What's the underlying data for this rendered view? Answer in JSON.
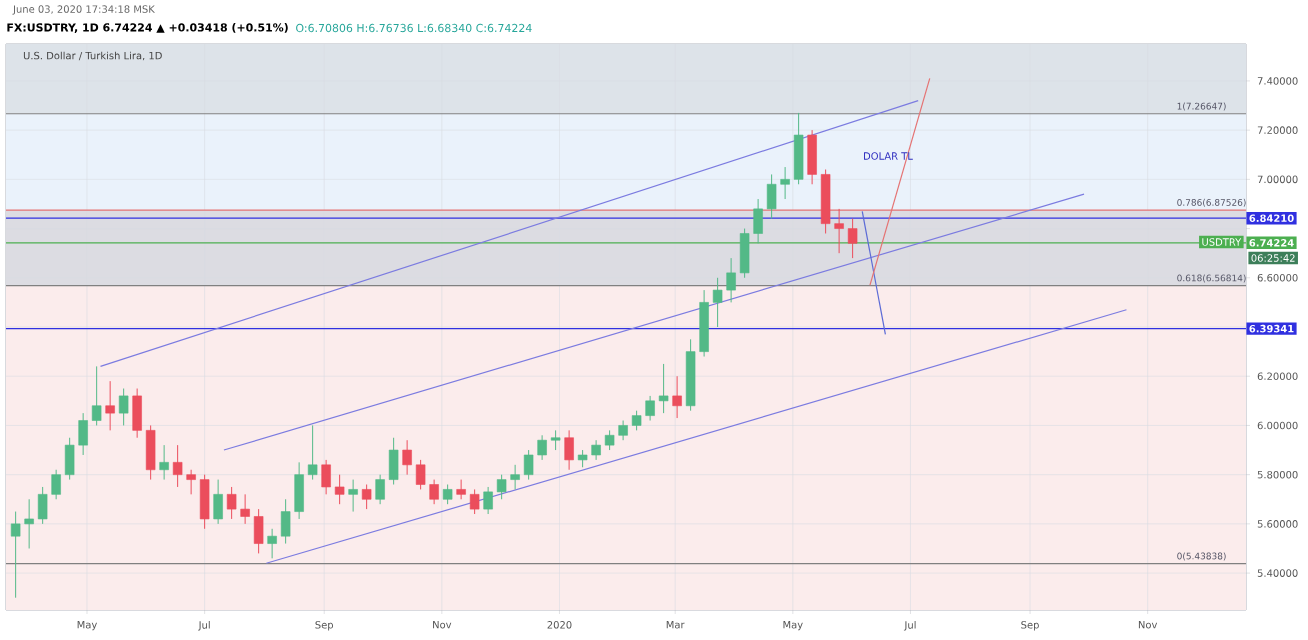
{
  "chart_data": {
    "type": "candlestick",
    "title": "**FX:USDTRY, 1D** 6.74224 ▲ +0.03418 (+0.51%)",
    "subtitle": "O:6.70806 H:6.76736 L:6.68340 C:6.74224",
    "annotations": [
      "June 03, 2020 17:34:18 MSK",
      "U.S. Dollar / Turkish Lira, 1D",
      "USDTRY",
      "06:25:42",
      {
        "text": "1(7.26647)",
        "x": "2020-11-15",
        "y": 7.26647
      },
      {
        "text": "0.786(6.87526)",
        "x": "2020-11-15",
        "y": 6.87526
      },
      {
        "text": "0.618(6.56814)",
        "x": "2020-11-15",
        "y": 6.56814
      },
      {
        "text": "0(5.43838)",
        "x": "2020-11-15",
        "y": 5.43838
      },
      "DOLAR TL"
    ],
    "x": [
      "2019-03-25",
      "2019-04-01",
      "2019-04-08",
      "2019-04-15",
      "2019-04-22",
      "2019-04-29",
      "2019-05-06",
      "2019-05-13",
      "2019-05-20",
      "2019-05-27",
      "2019-06-03",
      "2019-06-10",
      "2019-06-17",
      "2019-06-24",
      "2019-07-01",
      "2019-07-08",
      "2019-07-15",
      "2019-07-22",
      "2019-07-29",
      "2019-08-05",
      "2019-08-12",
      "2019-08-19",
      "2019-08-26",
      "2019-09-02",
      "2019-09-09",
      "2019-09-16",
      "2019-09-23",
      "2019-09-30",
      "2019-10-07",
      "2019-10-14",
      "2019-10-21",
      "2019-10-28",
      "2019-11-04",
      "2019-11-11",
      "2019-11-18",
      "2019-11-25",
      "2019-12-02",
      "2019-12-09",
      "2019-12-16",
      "2019-12-23",
      "2019-12-30",
      "2020-01-06",
      "2020-01-13",
      "2020-01-20",
      "2020-01-27",
      "2020-02-03",
      "2020-02-10",
      "2020-02-17",
      "2020-02-24",
      "2020-03-02",
      "2020-03-09",
      "2020-03-16",
      "2020-03-23",
      "2020-03-30",
      "2020-04-06",
      "2020-04-13",
      "2020-04-20",
      "2020-04-27",
      "2020-05-04",
      "2020-05-11",
      "2020-05-18",
      "2020-05-25",
      "2020-06-01"
    ],
    "ohlc": [
      [
        5.55,
        5.65,
        5.3,
        5.6
      ],
      [
        5.6,
        5.7,
        5.5,
        5.62
      ],
      [
        5.62,
        5.75,
        5.6,
        5.72
      ],
      [
        5.72,
        5.82,
        5.7,
        5.8
      ],
      [
        5.8,
        5.95,
        5.78,
        5.92
      ],
      [
        5.92,
        6.05,
        5.88,
        6.02
      ],
      [
        6.02,
        6.24,
        6.0,
        6.08
      ],
      [
        6.08,
        6.18,
        5.98,
        6.05
      ],
      [
        6.05,
        6.15,
        6.0,
        6.12
      ],
      [
        6.12,
        6.15,
        5.95,
        5.98
      ],
      [
        5.98,
        6.0,
        5.78,
        5.82
      ],
      [
        5.82,
        5.92,
        5.78,
        5.85
      ],
      [
        5.85,
        5.92,
        5.75,
        5.8
      ],
      [
        5.8,
        5.82,
        5.72,
        5.78
      ],
      [
        5.78,
        5.8,
        5.58,
        5.62
      ],
      [
        5.62,
        5.78,
        5.6,
        5.72
      ],
      [
        5.72,
        5.75,
        5.62,
        5.66
      ],
      [
        5.66,
        5.72,
        5.6,
        5.63
      ],
      [
        5.63,
        5.66,
        5.48,
        5.52
      ],
      [
        5.52,
        5.58,
        5.46,
        5.55
      ],
      [
        5.55,
        5.7,
        5.52,
        5.65
      ],
      [
        5.65,
        5.85,
        5.62,
        5.8
      ],
      [
        5.8,
        6.0,
        5.78,
        5.84
      ],
      [
        5.84,
        5.86,
        5.72,
        5.75
      ],
      [
        5.75,
        5.8,
        5.68,
        5.72
      ],
      [
        5.72,
        5.78,
        5.65,
        5.74
      ],
      [
        5.74,
        5.76,
        5.66,
        5.7
      ],
      [
        5.7,
        5.8,
        5.68,
        5.78
      ],
      [
        5.78,
        5.95,
        5.76,
        5.9
      ],
      [
        5.9,
        5.94,
        5.8,
        5.84
      ],
      [
        5.84,
        5.86,
        5.74,
        5.76
      ],
      [
        5.76,
        5.78,
        5.68,
        5.7
      ],
      [
        5.7,
        5.76,
        5.68,
        5.74
      ],
      [
        5.74,
        5.78,
        5.7,
        5.72
      ],
      [
        5.72,
        5.74,
        5.64,
        5.66
      ],
      [
        5.66,
        5.75,
        5.64,
        5.73
      ],
      [
        5.73,
        5.8,
        5.7,
        5.78
      ],
      [
        5.78,
        5.84,
        5.74,
        5.8
      ],
      [
        5.8,
        5.9,
        5.78,
        5.88
      ],
      [
        5.88,
        5.96,
        5.86,
        5.94
      ],
      [
        5.94,
        5.98,
        5.9,
        5.95
      ],
      [
        5.95,
        5.98,
        5.82,
        5.86
      ],
      [
        5.86,
        5.9,
        5.83,
        5.88
      ],
      [
        5.88,
        5.94,
        5.86,
        5.92
      ],
      [
        5.92,
        5.98,
        5.9,
        5.96
      ],
      [
        5.96,
        6.02,
        5.94,
        6.0
      ],
      [
        6.0,
        6.06,
        5.98,
        6.04
      ],
      [
        6.04,
        6.12,
        6.02,
        6.1
      ],
      [
        6.1,
        6.25,
        6.05,
        6.12
      ],
      [
        6.12,
        6.2,
        6.03,
        6.08
      ],
      [
        6.08,
        6.35,
        6.06,
        6.3
      ],
      [
        6.3,
        6.55,
        6.28,
        6.5
      ],
      [
        6.5,
        6.6,
        6.4,
        6.55
      ],
      [
        6.55,
        6.68,
        6.5,
        6.62
      ],
      [
        6.62,
        6.8,
        6.6,
        6.78
      ],
      [
        6.78,
        6.92,
        6.74,
        6.88
      ],
      [
        6.88,
        7.02,
        6.84,
        6.98
      ],
      [
        6.98,
        7.05,
        6.92,
        7.0
      ],
      [
        7.0,
        7.27,
        6.98,
        7.18
      ],
      [
        7.18,
        7.2,
        6.98,
        7.02
      ],
      [
        7.02,
        7.04,
        6.78,
        6.82
      ],
      [
        6.82,
        6.88,
        6.7,
        6.8
      ],
      [
        6.8,
        6.84,
        6.68,
        6.74
      ]
    ],
    "colors": [
      "#53b987",
      "#53b987",
      "#53b987",
      "#53b987",
      "#53b987",
      "#53b987",
      "#53b987",
      "#eb4d5c",
      "#53b987",
      "#eb4d5c",
      "#eb4d5c",
      "#53b987",
      "#eb4d5c",
      "#eb4d5c",
      "#eb4d5c",
      "#53b987",
      "#eb4d5c",
      "#eb4d5c",
      "#eb4d5c",
      "#53b987",
      "#53b987",
      "#53b987",
      "#53b987",
      "#eb4d5c",
      "#eb4d5c",
      "#53b987",
      "#eb4d5c",
      "#53b987",
      "#53b987",
      "#eb4d5c",
      "#eb4d5c",
      "#eb4d5c",
      "#53b987",
      "#eb4d5c",
      "#eb4d5c",
      "#53b987",
      "#53b987",
      "#53b987",
      "#53b987",
      "#53b987",
      "#53b987",
      "#eb4d5c",
      "#53b987",
      "#53b987",
      "#53b987",
      "#53b987",
      "#53b987",
      "#53b987",
      "#53b987",
      "#eb4d5c",
      "#53b987",
      "#53b987",
      "#53b987",
      "#53b987",
      "#53b987",
      "#53b987",
      "#53b987",
      "#53b987",
      "#53b987",
      "#eb4d5c",
      "#eb4d5c",
      "#eb4d5c",
      "#eb4d5c"
    ],
    "series": [
      {
        "type": "line",
        "color": "#7b7be0",
        "x": [
          "2019-05-08",
          "2020-07-05"
        ],
        "values": [
          6.24,
          7.32
        ]
      },
      {
        "type": "line",
        "color": "#7b7be0",
        "x": [
          "2019-07-11",
          "2020-09-29"
        ],
        "values": [
          5.9,
          6.94
        ]
      },
      {
        "type": "line",
        "color": "#7b7be0",
        "x": [
          "2019-08-02",
          "2020-10-21"
        ],
        "values": [
          5.44,
          6.47
        ]
      },
      {
        "type": "line",
        "color": "#5c6bd6",
        "x": [
          "2020-06-06",
          "2020-06-18"
        ],
        "values": [
          6.87,
          6.37
        ]
      },
      {
        "type": "line",
        "color": "#e57373",
        "x": [
          "2020-06-10",
          "2020-07-11"
        ],
        "values": [
          6.57,
          7.41
        ]
      }
    ],
    "bands": [
      {
        "axis": "y",
        "from": 7.26647,
        "to": 7.55,
        "color": "#dde3e9"
      },
      {
        "axis": "y",
        "from": 6.87526,
        "to": 7.26647,
        "color": "#eaf2fb"
      },
      {
        "axis": "y",
        "from": 6.56814,
        "to": 6.87526,
        "color": "#dcdce2"
      },
      {
        "axis": "y",
        "from": 5.25,
        "to": 6.56814,
        "color": "#fbecec"
      }
    ],
    "ref_lines": [
      {
        "axis": "y",
        "value": 7.26647,
        "color": "#808080"
      },
      {
        "axis": "y",
        "value": 6.87526,
        "color": "#e57373"
      },
      {
        "axis": "y",
        "value": 6.56814,
        "color": "#808080"
      },
      {
        "axis": "y",
        "value": 5.43838,
        "color": "#808080"
      },
      {
        "axis": "y",
        "value": 6.8421,
        "label": "6.84210",
        "color": "#3030e0"
      },
      {
        "axis": "y",
        "value": 6.39341,
        "label": "6.39341",
        "color": "#3030e0"
      },
      {
        "axis": "y",
        "value": 6.74224,
        "label": "6.74224",
        "color": "#4caf50"
      }
    ],
    "xlim": [
      "2019-03-20",
      "2020-12-22"
    ],
    "xticks": [
      {
        "value": "2019-05-01",
        "label": "May"
      },
      {
        "value": "2019-07-01",
        "label": "Jul"
      },
      {
        "value": "2019-09-01",
        "label": "Sep"
      },
      {
        "value": "2019-11-01",
        "label": "Nov"
      },
      {
        "value": "2020-01-01",
        "label": "2020"
      },
      {
        "value": "2020-03-01",
        "label": "Mar"
      },
      {
        "value": "2020-05-01",
        "label": "May"
      },
      {
        "value": "2020-07-01",
        "label": "Jul"
      },
      {
        "value": "2020-09-01",
        "label": "Sep"
      },
      {
        "value": "2020-11-01",
        "label": "Nov"
      }
    ],
    "ylim": [
      5.25,
      7.55
    ],
    "yticks": [
      {
        "value": 5.4,
        "label": "5.40000"
      },
      {
        "value": 5.6,
        "label": "5.60000"
      },
      {
        "value": 5.8,
        "label": "5.80000"
      },
      {
        "value": 6.0,
        "label": "6.00000"
      },
      {
        "value": 6.2,
        "label": "6.20000"
      },
      {
        "value": 6.4,
        "label": null
      },
      {
        "value": 6.6,
        "label": "6.60000"
      },
      {
        "value": 6.8,
        "label": null
      },
      {
        "value": 7.0,
        "label": "7.00000"
      },
      {
        "value": 7.2,
        "label": "7.20000"
      },
      {
        "value": 7.4,
        "label": "7.40000"
      }
    ],
    "grid": true
  }
}
